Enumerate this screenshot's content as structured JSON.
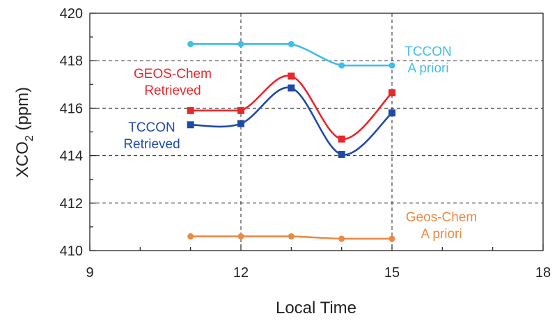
{
  "chart_data": {
    "type": "line",
    "title": "",
    "xlabel": "Local Time",
    "ylabel": {
      "main": "XCO",
      "sub": "2",
      "unit": " (ppm)"
    },
    "xlim": [
      9,
      18
    ],
    "ylim": [
      410,
      420
    ],
    "xticks": [
      9,
      12,
      15,
      18
    ],
    "yticks": [
      410,
      412,
      414,
      416,
      418,
      420
    ],
    "grid": "dashed at major ticks",
    "legend": "inline labels",
    "series": [
      {
        "name": "TCCON A priori",
        "label_lines": [
          "TCCON",
          "A priori"
        ],
        "color": "#3ebfe8",
        "marker": "circle",
        "x": [
          11,
          12,
          13,
          14,
          15
        ],
        "y": [
          418.7,
          418.7,
          418.7,
          417.8,
          417.8
        ]
      },
      {
        "name": "GEOS-Chem Retrieved",
        "label_lines": [
          "GEOS-Chem",
          "Retrieved"
        ],
        "color": "#e8262b",
        "marker": "square",
        "x": [
          11,
          12,
          13,
          14,
          15
        ],
        "y": [
          415.9,
          415.9,
          417.35,
          414.7,
          416.65
        ]
      },
      {
        "name": "TCCON Retrieved",
        "label_lines": [
          "TCCON",
          "Retrieved"
        ],
        "color": "#1f4aa8",
        "marker": "square",
        "x": [
          11,
          12,
          13,
          14,
          15
        ],
        "y": [
          415.3,
          415.35,
          416.85,
          414.05,
          415.8
        ]
      },
      {
        "name": "Geos-Chem A priori",
        "label_lines": [
          "Geos-Chem",
          "A priori"
        ],
        "color": "#ec8a43",
        "marker": "circle",
        "x": [
          11,
          12,
          13,
          14,
          15
        ],
        "y": [
          410.6,
          410.6,
          410.6,
          410.5,
          410.5
        ]
      }
    ]
  }
}
